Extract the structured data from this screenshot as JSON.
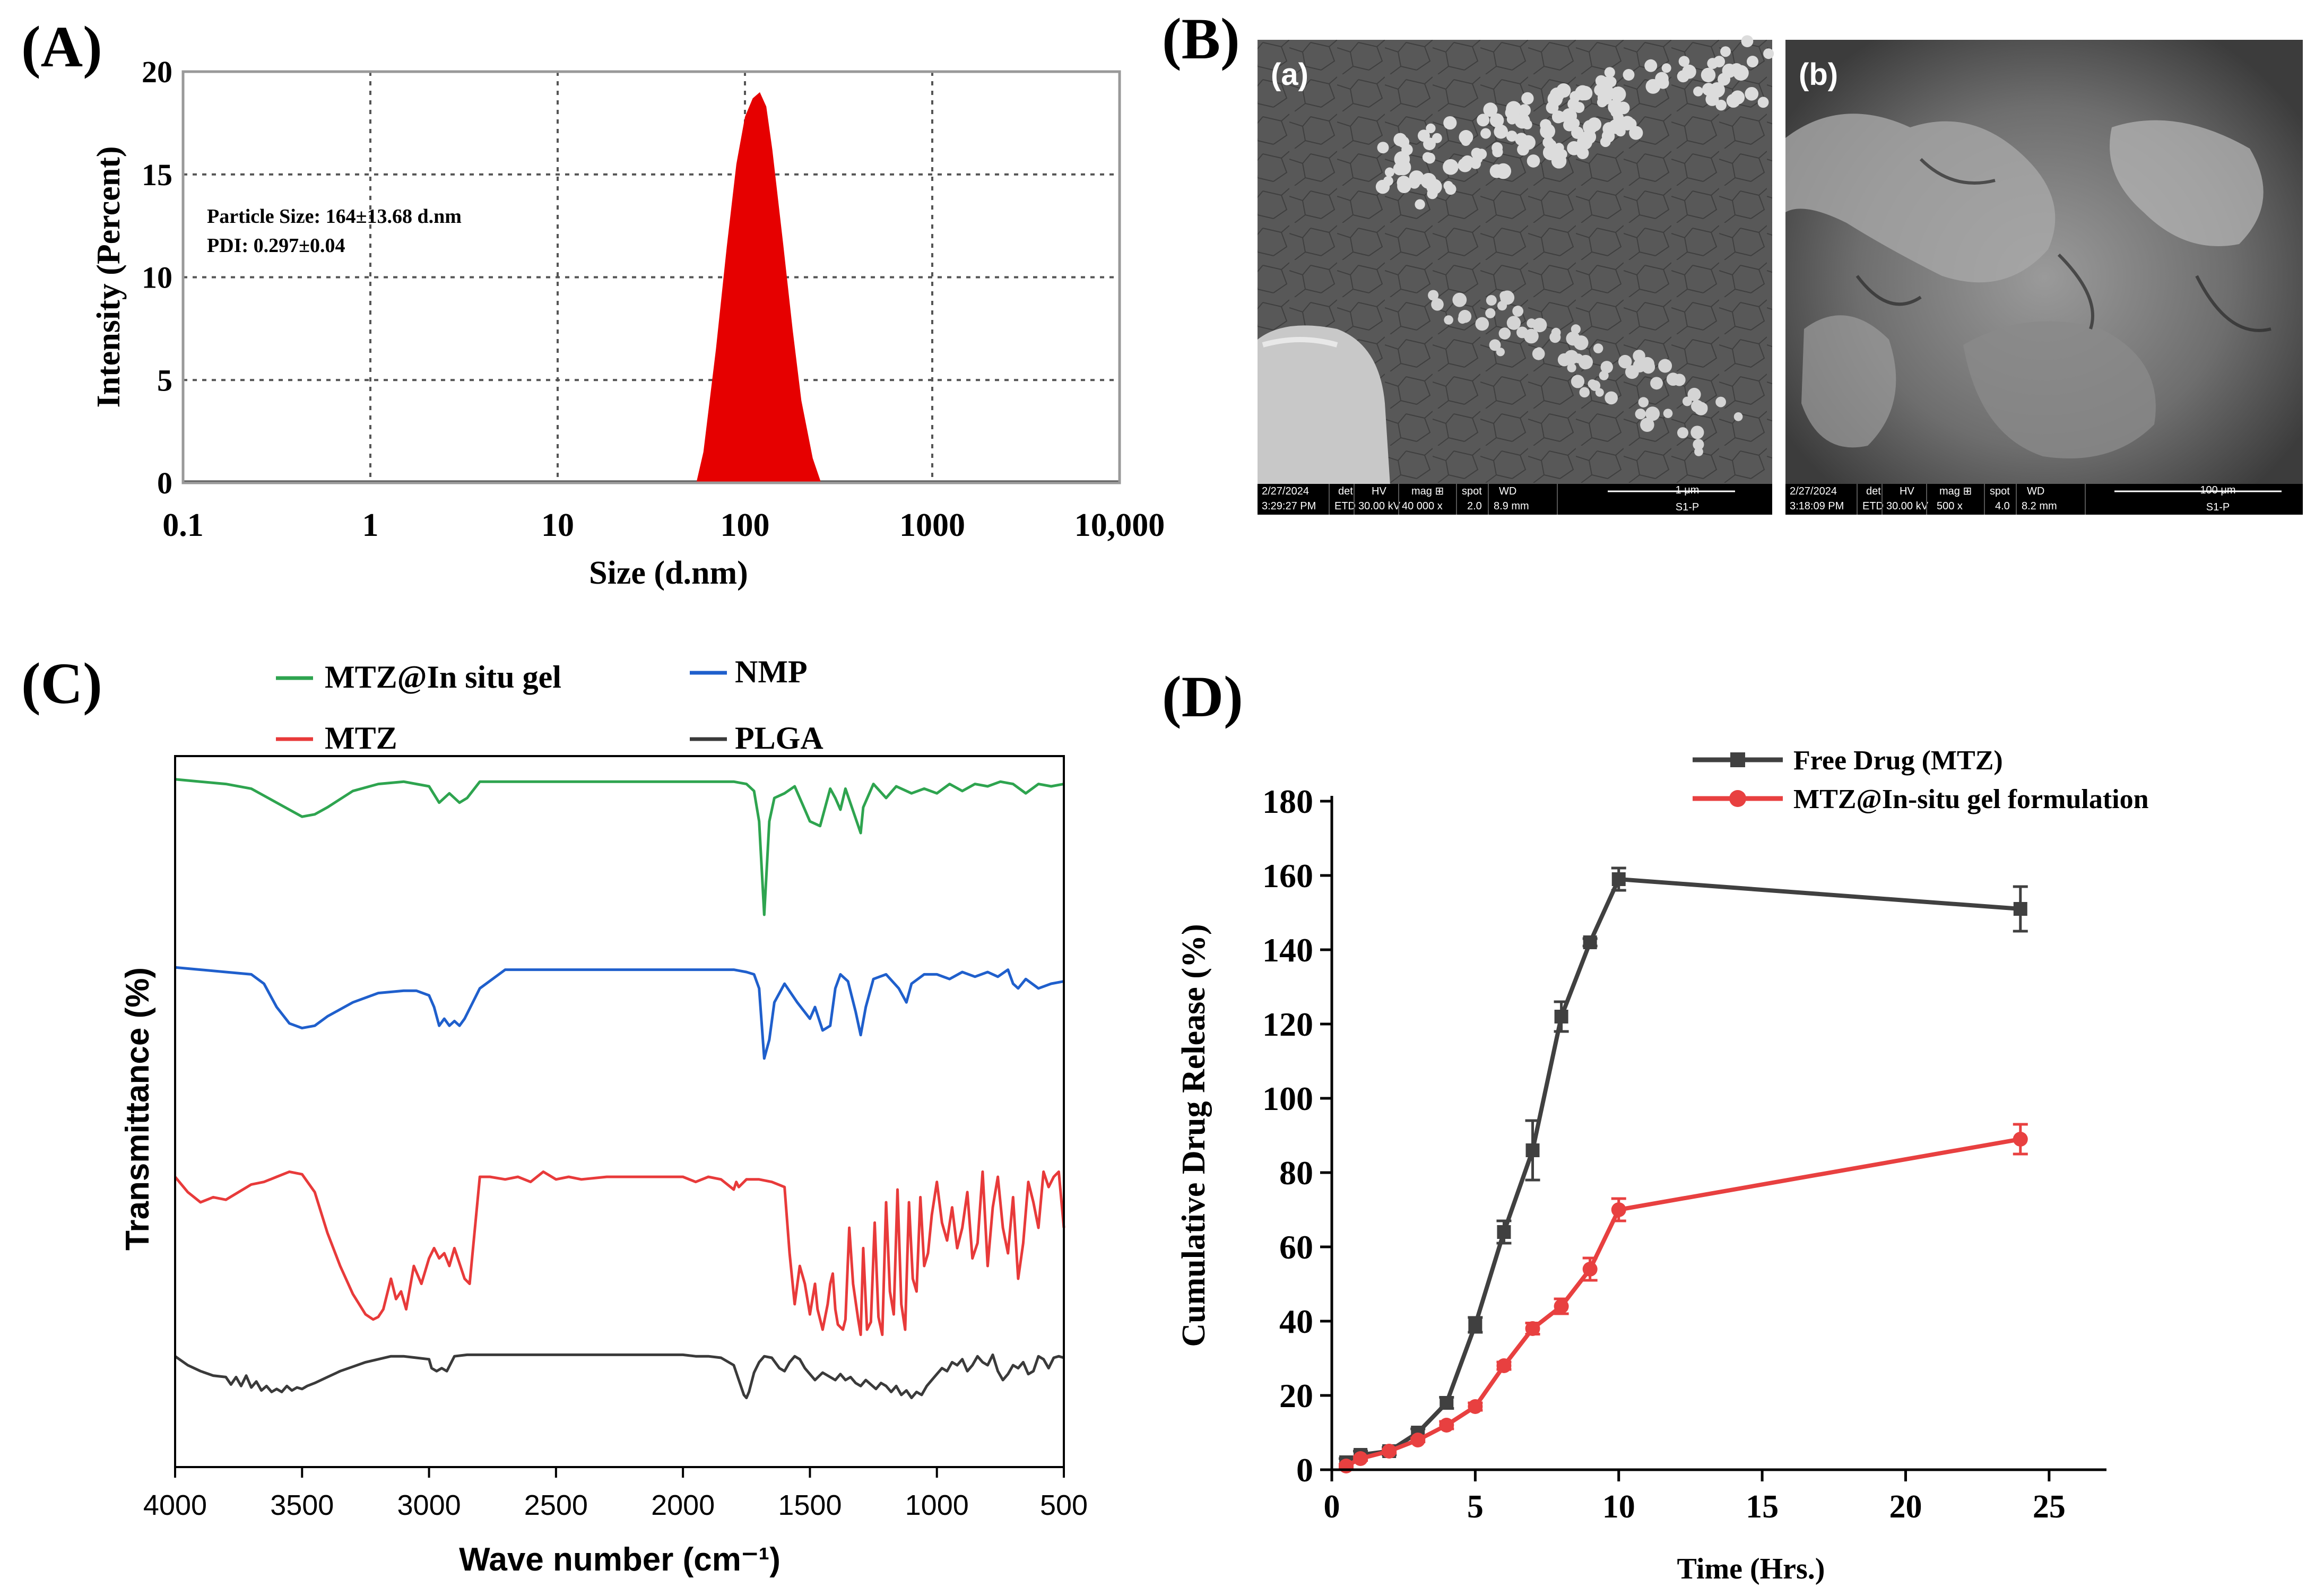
{
  "colors": {
    "dls_fill": "#e60000",
    "ftir_gel": "#2ea44f",
    "ftir_nmp": "#1f5fcc",
    "ftir_mtz": "#e83a3a",
    "ftir_plga": "#3a3a3a",
    "release_free": "#404040",
    "release_gel": "#e84040"
  },
  "panels": {
    "A": {
      "label": "(A)"
    },
    "B": {
      "label": "(B)"
    },
    "C": {
      "label": "(C)"
    },
    "D": {
      "label": "(D)"
    }
  },
  "sem": {
    "a": {
      "label": "(a)",
      "bar": {
        "date": "2/27/2024",
        "time": "3:29:27 PM",
        "det_h": "det",
        "det": "ETD",
        "hv_h": "HV",
        "hv": "30.00 kV",
        "mag_h": "mag ⊞",
        "mag": "40 000 x",
        "spot_h": "spot",
        "spot": "2.0",
        "wd_h": "WD",
        "wd": "8.9 mm",
        "scale": "1 μm",
        "sample": "S1-P"
      }
    },
    "b": {
      "label": "(b)",
      "bar": {
        "date": "2/27/2024",
        "time": "3:18:09 PM",
        "det_h": "det",
        "det": "ETD",
        "hv_h": "HV",
        "hv": "30.00 kV",
        "mag_h": "mag ⊞",
        "mag": "500 x",
        "spot_h": "spot",
        "spot": "4.0",
        "wd_h": "WD",
        "wd": "8.2 mm",
        "scale": "100 μm",
        "sample": "S1-P"
      }
    }
  },
  "chart_data": [
    {
      "id": "A",
      "type": "area",
      "title": "",
      "xlabel": "Size (d.nm)",
      "ylabel": "Intensity (Percent)",
      "xscale": "log",
      "xlim": [
        0.1,
        10000
      ],
      "ylim": [
        0,
        20
      ],
      "xticks": [
        0.1,
        1,
        10,
        100,
        1000,
        10000
      ],
      "xtick_labels": [
        "0.1",
        "1",
        "10",
        "100",
        "1000",
        "10,000"
      ],
      "yticks": [
        0,
        5,
        10,
        15,
        20
      ],
      "ytick_labels": [
        "0",
        "5",
        "10",
        "15",
        "20"
      ],
      "grid": true,
      "annotations": [
        "Particle Size: 164±13.68 d.nm",
        "PDI: 0.297±0.04"
      ],
      "x": [
        55,
        60,
        70,
        80,
        90,
        100,
        110,
        120,
        130,
        140,
        160,
        180,
        200,
        230,
        255
      ],
      "y": [
        0,
        1.5,
        6.5,
        11.5,
        15.5,
        17.8,
        18.7,
        19.0,
        18.3,
        16.2,
        11.6,
        7.4,
        4.0,
        1.2,
        0
      ]
    },
    {
      "id": "C",
      "type": "line",
      "title": "",
      "xlabel": "Wave number (cm⁻¹)",
      "ylabel": "Transmittance (%)",
      "xlim": [
        4000,
        500
      ],
      "xticks": [
        4000,
        3500,
        3000,
        2500,
        2000,
        1500,
        1000,
        500
      ],
      "xtick_labels": [
        "4000",
        "3500",
        "3000",
        "2500",
        "2000",
        "1500",
        "1000",
        "500"
      ],
      "legend": [
        "MTZ@In situ gel",
        "NMP",
        "MTZ",
        "PLGA"
      ],
      "series": [
        {
          "name": "MTZ@In situ gel",
          "x": [
            4000,
            3900,
            3800,
            3700,
            3600,
            3500,
            3450,
            3400,
            3300,
            3200,
            3100,
            3000,
            2960,
            2920,
            2880,
            2850,
            2800,
            2700,
            2500,
            2300,
            2000,
            1800,
            1750,
            1720,
            1700,
            1680,
            1660,
            1640,
            1600,
            1560,
            1520,
            1500,
            1460,
            1420,
            1400,
            1380,
            1360,
            1300,
            1290,
            1250,
            1200,
            1160,
            1100,
            1050,
            1000,
            950,
            900,
            850,
            800,
            750,
            700,
            650,
            600,
            550,
            500
          ],
          "y": [
            98,
            97,
            96,
            94,
            88,
            82,
            83,
            86,
            93,
            96,
            97,
            95,
            88,
            92,
            88,
            90,
            97,
            97,
            97,
            97,
            97,
            97,
            96,
            93,
            80,
            40,
            80,
            90,
            92,
            95,
            85,
            80,
            78,
            94,
            90,
            85,
            94,
            75,
            86,
            96,
            90,
            95,
            92,
            94,
            92,
            96,
            93,
            96,
            95,
            97,
            96,
            92,
            96,
            95,
            96
          ]
        },
        {
          "name": "NMP",
          "x": [
            4000,
            3900,
            3800,
            3700,
            3650,
            3600,
            3550,
            3500,
            3450,
            3400,
            3300,
            3200,
            3100,
            3050,
            3000,
            2980,
            2960,
            2940,
            2920,
            2900,
            2880,
            2860,
            2800,
            2700,
            2500,
            2300,
            2000,
            1800,
            1750,
            1720,
            1700,
            1680,
            1660,
            1640,
            1600,
            1550,
            1500,
            1480,
            1450,
            1420,
            1400,
            1380,
            1350,
            1320,
            1300,
            1280,
            1250,
            1200,
            1150,
            1120,
            1100,
            1050,
            1000,
            950,
            900,
            850,
            800,
            760,
            720,
            700,
            680,
            650,
            600,
            550,
            500
          ],
          "y": [
            97,
            96,
            95,
            94,
            90,
            80,
            73,
            71,
            72,
            76,
            82,
            86,
            87,
            87,
            85,
            80,
            72,
            75,
            72,
            74,
            72,
            75,
            88,
            96,
            96,
            96,
            96,
            96,
            95,
            94,
            88,
            58,
            66,
            82,
            90,
            82,
            75,
            80,
            70,
            72,
            88,
            94,
            91,
            78,
            68,
            80,
            92,
            94,
            88,
            82,
            90,
            94,
            94,
            92,
            95,
            93,
            95,
            93,
            96,
            90,
            88,
            92,
            88,
            90,
            91
          ]
        },
        {
          "name": "MTZ",
          "x": [
            4000,
            3950,
            3900,
            3850,
            3800,
            3750,
            3700,
            3650,
            3600,
            3550,
            3500,
            3450,
            3400,
            3350,
            3300,
            3250,
            3220,
            3200,
            3180,
            3150,
            3130,
            3110,
            3090,
            3060,
            3030,
            3000,
            2980,
            2960,
            2940,
            2920,
            2900,
            2880,
            2860,
            2840,
            2800,
            2760,
            2700,
            2650,
            2600,
            2550,
            2500,
            2450,
            2400,
            2300,
            2200,
            2100,
            2000,
            1950,
            1900,
            1850,
            1800,
            1790,
            1780,
            1750,
            1700,
            1650,
            1600,
            1580,
            1560,
            1540,
            1520,
            1500,
            1490,
            1480,
            1470,
            1450,
            1430,
            1420,
            1410,
            1400,
            1390,
            1370,
            1360,
            1345,
            1330,
            1310,
            1300,
            1290,
            1275,
            1260,
            1245,
            1230,
            1215,
            1200,
            1185,
            1170,
            1155,
            1140,
            1125,
            1110,
            1095,
            1080,
            1065,
            1050,
            1035,
            1020,
            1000,
            980,
            960,
            940,
            920,
            900,
            880,
            860,
            840,
            820,
            800,
            780,
            760,
            740,
            720,
            700,
            680,
            660,
            640,
            620,
            600,
            580,
            560,
            540,
            520,
            500
          ],
          "y": [
            90,
            84,
            80,
            82,
            81,
            84,
            87,
            88,
            90,
            92,
            91,
            84,
            68,
            55,
            44,
            36,
            34,
            35,
            38,
            50,
            42,
            45,
            38,
            55,
            48,
            58,
            62,
            58,
            60,
            55,
            62,
            56,
            50,
            48,
            90,
            90,
            89,
            90,
            88,
            92,
            89,
            90,
            89,
            90,
            90,
            90,
            90,
            88,
            90,
            89,
            85,
            88,
            86,
            89,
            89,
            88,
            86,
            60,
            40,
            55,
            48,
            36,
            42,
            48,
            38,
            30,
            40,
            48,
            52,
            38,
            32,
            30,
            34,
            70,
            48,
            34,
            28,
            62,
            30,
            33,
            72,
            35,
            28,
            80,
            45,
            36,
            85,
            40,
            30,
            80,
            50,
            45,
            82,
            55,
            60,
            75,
            88,
            72,
            65,
            78,
            62,
            70,
            84,
            58,
            64,
            92,
            55,
            78,
            90,
            70,
            60,
            82,
            50,
            64,
            88,
            80,
            70,
            92,
            86,
            90,
            92,
            70
          ]
        },
        {
          "name": "PLGA",
          "x": [
            4000,
            3950,
            3900,
            3850,
            3800,
            3780,
            3760,
            3740,
            3720,
            3700,
            3680,
            3660,
            3640,
            3620,
            3600,
            3580,
            3560,
            3540,
            3520,
            3500,
            3480,
            3450,
            3400,
            3350,
            3300,
            3250,
            3200,
            3150,
            3100,
            3050,
            3000,
            2990,
            2970,
            2950,
            2930,
            2900,
            2850,
            2800,
            2700,
            2500,
            2300,
            2100,
            2000,
            1950,
            1900,
            1850,
            1800,
            1780,
            1760,
            1750,
            1740,
            1720,
            1700,
            1680,
            1650,
            1620,
            1600,
            1580,
            1560,
            1540,
            1520,
            1500,
            1480,
            1450,
            1420,
            1400,
            1380,
            1360,
            1340,
            1320,
            1300,
            1280,
            1260,
            1240,
            1220,
            1200,
            1180,
            1160,
            1140,
            1120,
            1100,
            1080,
            1060,
            1040,
            1020,
            1000,
            980,
            960,
            940,
            920,
            900,
            880,
            860,
            840,
            820,
            800,
            780,
            760,
            740,
            720,
            700,
            680,
            660,
            640,
            620,
            600,
            580,
            560,
            540,
            520,
            500
          ],
          "y": [
            96,
            90,
            86,
            83,
            82,
            77,
            82,
            76,
            83,
            75,
            79,
            73,
            76,
            72,
            74,
            72,
            76,
            73,
            75,
            74,
            76,
            78,
            82,
            86,
            89,
            92,
            94,
            96,
            96,
            95,
            94,
            88,
            86,
            88,
            86,
            96,
            97,
            97,
            97,
            97,
            97,
            97,
            97,
            96,
            96,
            95,
            90,
            80,
            70,
            68,
            72,
            85,
            92,
            96,
            95,
            88,
            86,
            92,
            96,
            94,
            88,
            84,
            80,
            85,
            82,
            80,
            84,
            80,
            82,
            78,
            76,
            80,
            77,
            74,
            78,
            76,
            72,
            76,
            70,
            73,
            68,
            72,
            70,
            76,
            80,
            84,
            88,
            86,
            92,
            90,
            94,
            86,
            90,
            96,
            92,
            90,
            97,
            86,
            80,
            84,
            90,
            88,
            92,
            84,
            86,
            96,
            94,
            88,
            95,
            96,
            95
          ]
        }
      ]
    },
    {
      "id": "D",
      "type": "line",
      "title": "",
      "xlabel": "Time (Hrs.)",
      "ylabel": "Cumulative Drug Release (%)",
      "xlim": [
        0,
        27
      ],
      "ylim": [
        0,
        180
      ],
      "xticks": [
        0,
        5,
        10,
        15,
        20,
        25
      ],
      "xtick_labels": [
        "0",
        "5",
        "10",
        "15",
        "20",
        "25"
      ],
      "yticks": [
        0,
        20,
        40,
        60,
        80,
        100,
        120,
        140,
        160,
        180
      ],
      "ytick_labels": [
        "0",
        "20",
        "40",
        "60",
        "80",
        "100",
        "120",
        "140",
        "160",
        "180"
      ],
      "legend_position": "top",
      "series": [
        {
          "name": "Free Drug (MTZ)",
          "marker": "square",
          "x": [
            0.5,
            1,
            2,
            3,
            4,
            5,
            6,
            7,
            8,
            9,
            10,
            24
          ],
          "values": [
            2,
            4,
            5,
            10,
            18,
            39,
            64,
            86,
            122,
            142,
            159,
            151
          ],
          "errors": [
            1,
            1,
            1,
            1,
            1.5,
            2,
            3,
            8,
            4,
            1,
            3,
            6
          ]
        },
        {
          "name": "MTZ@In-situ gel formulation",
          "marker": "circle",
          "x": [
            0.5,
            1,
            2,
            3,
            4,
            5,
            6,
            7,
            8,
            9,
            10,
            24
          ],
          "values": [
            1,
            3,
            5,
            8,
            12,
            17,
            28,
            38,
            44,
            54,
            70,
            89
          ],
          "errors": [
            0.5,
            0.5,
            0.5,
            0.5,
            1,
            1,
            1,
            1.5,
            2,
            3,
            3,
            4
          ]
        }
      ]
    }
  ]
}
